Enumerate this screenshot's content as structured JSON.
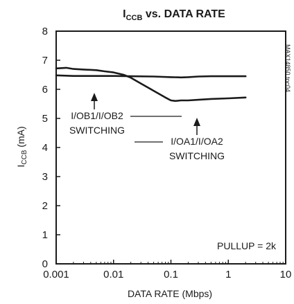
{
  "chart_data": {
    "type": "line",
    "title": {
      "main": "I",
      "sub": "CCB",
      "rest": " vs. DATA RATE"
    },
    "xlabel": "DATA RATE (Mbps)",
    "ylabel": {
      "main": "I",
      "sub": "CCB",
      "rest": " (mA)"
    },
    "x_scale": "log",
    "xlim": [
      0.001,
      10
    ],
    "ylim": [
      0,
      8
    ],
    "x_ticks": [
      "0.001",
      "0.01",
      "0.1",
      "1",
      "10"
    ],
    "y_ticks": [
      "0",
      "1",
      "2",
      "3",
      "4",
      "5",
      "6",
      "7",
      "8"
    ],
    "grid": false,
    "side_note": "MAX14850 toc04",
    "annotations": {
      "pullup": "PULLUP = 2k",
      "ob_line1": "I/OB1/I/OB2",
      "ob_line2": "SWITCHING",
      "oa_line1": "I/OA1/I/OA2",
      "oa_line2": "SWITCHING"
    },
    "series": [
      {
        "key": "oa",
        "x": [
          0.001,
          0.0015,
          0.002,
          0.003,
          0.005,
          0.007,
          0.01,
          0.015,
          0.02,
          0.03,
          0.05,
          0.08,
          0.1,
          0.12,
          0.15,
          0.2,
          0.3,
          0.5,
          1,
          2
        ],
        "y": [
          6.72,
          6.74,
          6.7,
          6.68,
          6.66,
          6.62,
          6.58,
          6.5,
          6.4,
          6.2,
          5.95,
          5.72,
          5.62,
          5.6,
          5.62,
          5.62,
          5.64,
          5.67,
          5.69,
          5.72
        ]
      },
      {
        "key": "ob",
        "x": [
          0.001,
          0.002,
          0.005,
          0.01,
          0.02,
          0.05,
          0.1,
          0.15,
          0.2,
          0.3,
          0.5,
          1,
          2
        ],
        "y": [
          6.48,
          6.46,
          6.46,
          6.46,
          6.45,
          6.44,
          6.42,
          6.41,
          6.42,
          6.44,
          6.45,
          6.45,
          6.45
        ]
      }
    ]
  }
}
